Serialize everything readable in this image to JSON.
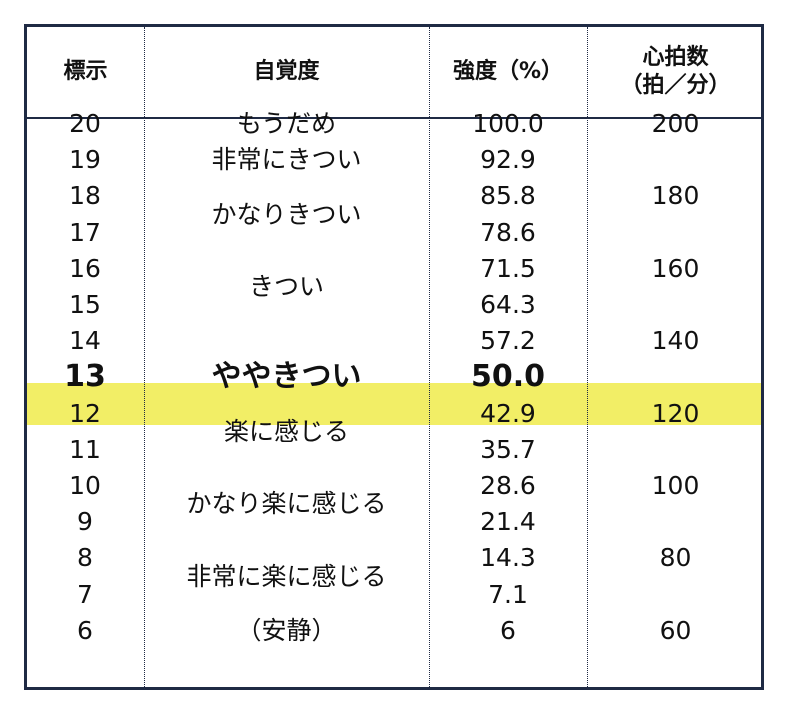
{
  "table": {
    "headers": {
      "mark": "標示",
      "perception": "自覚度",
      "intensity": "強度（%）",
      "heart_rate_line1": "心拍数",
      "heart_rate_line2": "（拍／分）"
    },
    "highlight_color": "#f2ee66",
    "border_color": "#1f2a44",
    "marks": [
      "20",
      "19",
      "18",
      "17",
      "16",
      "15",
      "14",
      "13",
      "12",
      "11",
      "10",
      "9",
      "8",
      "7",
      "6"
    ],
    "intensities": [
      "100.0",
      "92.9",
      "85.8",
      "78.6",
      "71.5",
      "64.3",
      "57.2",
      "50.0",
      "42.9",
      "35.7",
      "28.6",
      "21.4",
      "14.3",
      "7.1",
      "6"
    ],
    "heart_rates": [
      "200",
      "180",
      "160",
      "140",
      "120",
      "100",
      "80",
      "60"
    ],
    "perceptions": [
      "もうだめ",
      "非常にきつい",
      "かなりきつい",
      "きつい",
      "ややきつい",
      "楽に感じる",
      "かなり楽に感じる",
      "非常に楽に感じる",
      "（安静）"
    ]
  }
}
